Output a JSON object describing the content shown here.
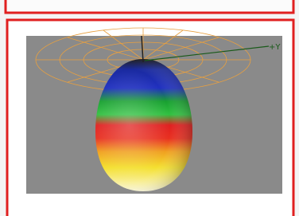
{
  "image": {
    "axis_label": "+Y"
  }
}
